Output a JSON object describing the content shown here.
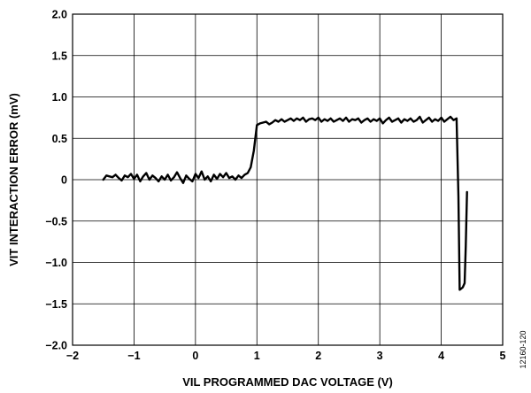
{
  "chart_data": {
    "type": "line",
    "title": "",
    "xlabel": "VIL PROGRAMMED DAC VOLTAGE (V)",
    "ylabel": "VIT INTERACTION ERROR (mV)",
    "xlim": [
      -2,
      5
    ],
    "ylim": [
      -2.0,
      2.0
    ],
    "grid": true,
    "x_ticks": [
      -2,
      -1,
      0,
      1,
      2,
      3,
      4,
      5
    ],
    "x_tick_labels": [
      "−2",
      "−1",
      "0",
      "1",
      "2",
      "3",
      "4",
      "5"
    ],
    "y_ticks": [
      2.0,
      1.5,
      1.0,
      0.5,
      0,
      -0.5,
      -1.0,
      -1.5,
      -2.0
    ],
    "y_tick_labels": [
      "2.0",
      "1.5",
      "1.0",
      "0.5",
      "0",
      "−0.5",
      "−1.0",
      "−1.5",
      "−2.0"
    ],
    "series": [
      {
        "x": [
          -1.5,
          -1.45,
          -1.4,
          -1.35,
          -1.3,
          -1.25,
          -1.2,
          -1.15,
          -1.1,
          -1.05,
          -1.0,
          -0.95,
          -0.9,
          -0.85,
          -0.8,
          -0.75,
          -0.7,
          -0.65,
          -0.6,
          -0.55,
          -0.5,
          -0.45,
          -0.4,
          -0.35,
          -0.3,
          -0.25,
          -0.2,
          -0.15,
          -0.1,
          -0.05,
          0.0,
          0.05,
          0.1,
          0.15,
          0.2,
          0.25,
          0.3,
          0.35,
          0.4,
          0.45,
          0.5,
          0.55,
          0.6,
          0.65,
          0.7,
          0.75,
          0.8,
          0.85,
          0.9,
          0.95,
          1.0,
          1.05,
          1.1,
          1.15,
          1.2,
          1.25,
          1.3,
          1.35,
          1.4,
          1.45,
          1.5,
          1.55,
          1.6,
          1.65,
          1.7,
          1.75,
          1.8,
          1.85,
          1.9,
          1.95,
          2.0,
          2.05,
          2.1,
          2.15,
          2.2,
          2.25,
          2.3,
          2.35,
          2.4,
          2.45,
          2.5,
          2.55,
          2.6,
          2.65,
          2.7,
          2.75,
          2.8,
          2.85,
          2.9,
          2.95,
          3.0,
          3.05,
          3.1,
          3.15,
          3.2,
          3.25,
          3.3,
          3.35,
          3.4,
          3.45,
          3.5,
          3.55,
          3.6,
          3.65,
          3.7,
          3.75,
          3.8,
          3.85,
          3.9,
          3.95,
          4.0,
          4.05,
          4.1,
          4.15,
          4.2,
          4.25,
          4.28,
          4.3,
          4.32,
          4.35,
          4.38,
          4.4,
          4.42
        ],
        "y": [
          0.0,
          0.05,
          0.04,
          0.03,
          0.06,
          0.02,
          -0.01,
          0.05,
          0.03,
          0.07,
          0.01,
          0.06,
          -0.02,
          0.04,
          0.08,
          0.0,
          0.05,
          0.02,
          -0.02,
          0.04,
          0.0,
          0.06,
          -0.01,
          0.03,
          0.09,
          0.02,
          -0.04,
          0.05,
          0.01,
          -0.02,
          0.07,
          0.02,
          0.1,
          0.0,
          0.04,
          -0.02,
          0.06,
          0.01,
          0.07,
          0.03,
          0.08,
          0.02,
          0.04,
          0.0,
          0.05,
          0.02,
          0.06,
          0.08,
          0.15,
          0.35,
          0.66,
          0.68,
          0.69,
          0.7,
          0.67,
          0.69,
          0.72,
          0.7,
          0.73,
          0.7,
          0.72,
          0.74,
          0.71,
          0.74,
          0.72,
          0.75,
          0.7,
          0.73,
          0.74,
          0.72,
          0.75,
          0.7,
          0.73,
          0.71,
          0.74,
          0.7,
          0.72,
          0.74,
          0.71,
          0.75,
          0.7,
          0.73,
          0.72,
          0.74,
          0.69,
          0.72,
          0.74,
          0.7,
          0.73,
          0.71,
          0.74,
          0.68,
          0.72,
          0.75,
          0.7,
          0.72,
          0.74,
          0.69,
          0.73,
          0.71,
          0.74,
          0.7,
          0.72,
          0.76,
          0.69,
          0.72,
          0.75,
          0.7,
          0.73,
          0.71,
          0.75,
          0.7,
          0.73,
          0.76,
          0.72,
          0.74,
          -0.2,
          -1.33,
          -1.32,
          -1.3,
          -1.25,
          -0.8,
          -0.15
        ]
      }
    ]
  },
  "figure_id": "12160-120"
}
